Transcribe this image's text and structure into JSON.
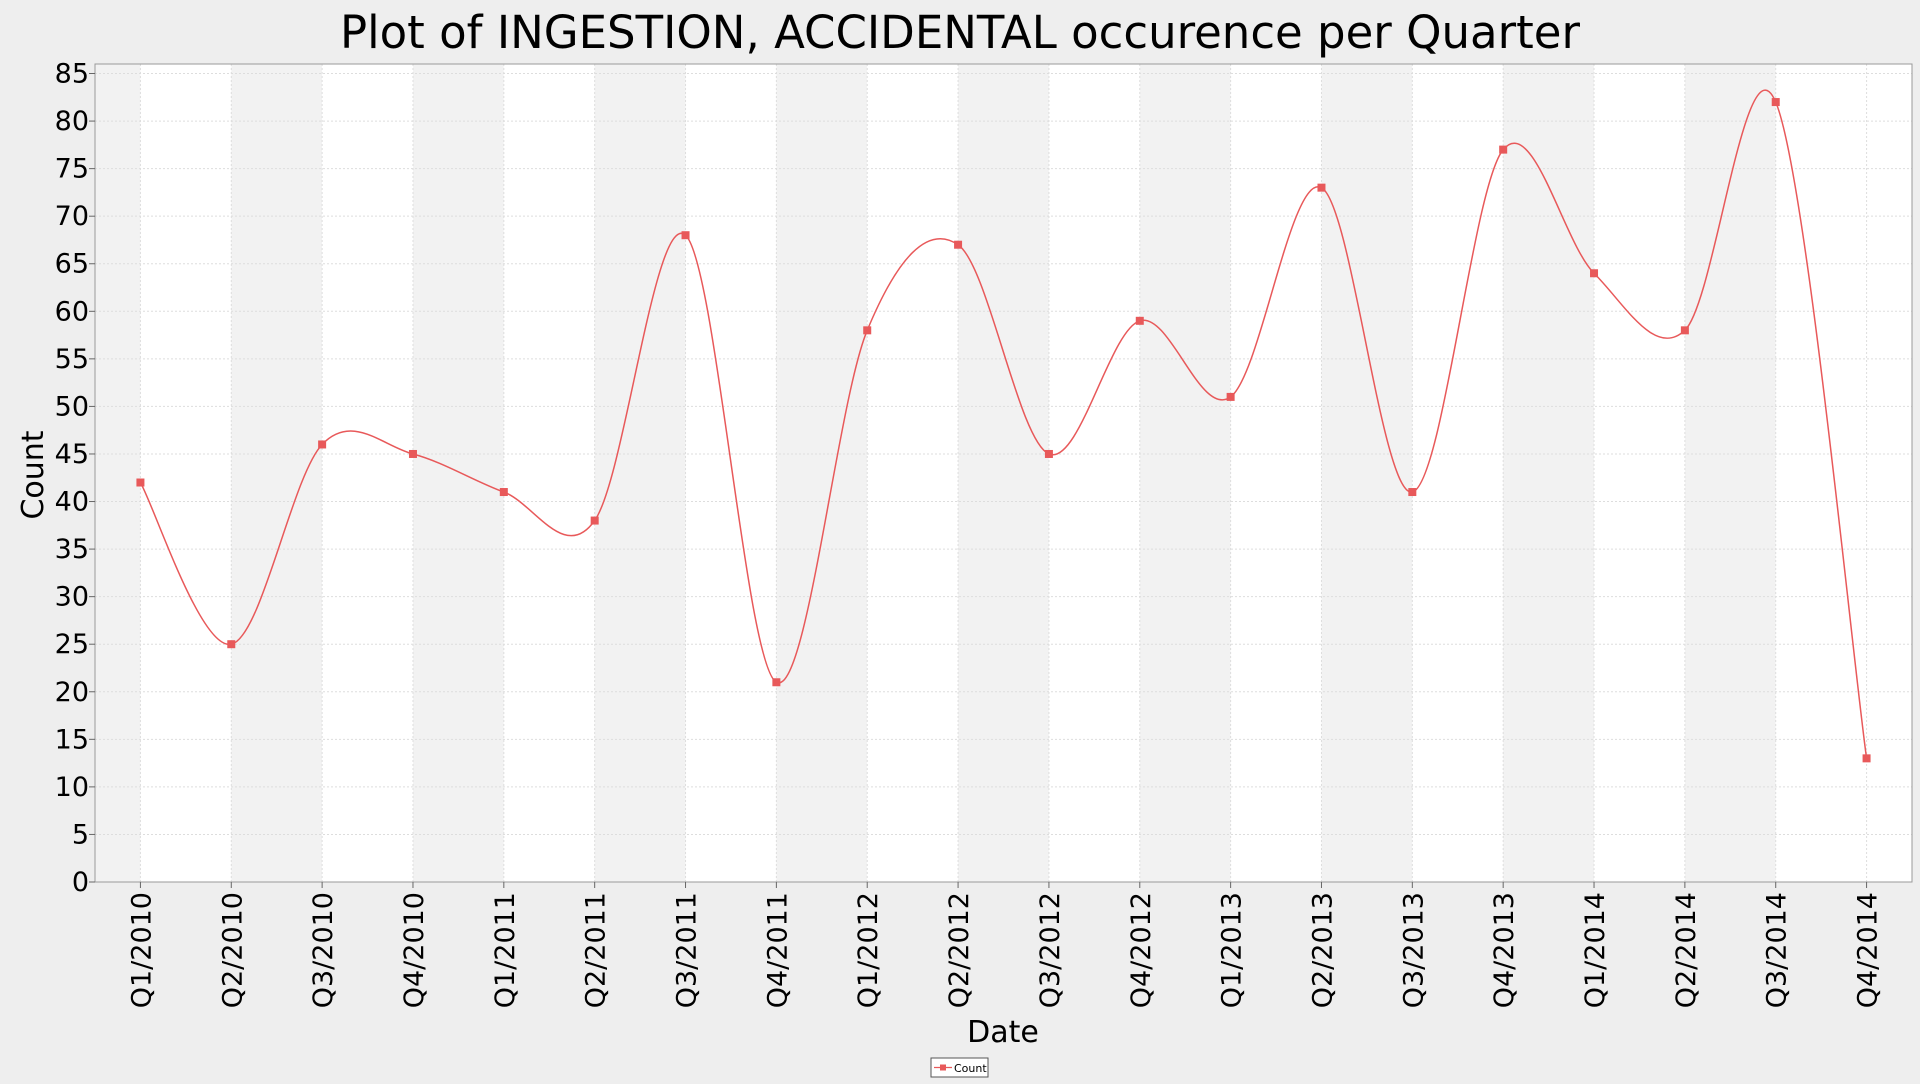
{
  "chart_data": {
    "type": "line",
    "title": "Plot of INGESTION, ACCIDENTAL occurence per Quarter",
    "xlabel": "Date",
    "ylabel": "Count",
    "categories": [
      "Q1/2010",
      "Q2/2010",
      "Q3/2010",
      "Q4/2010",
      "Q1/2011",
      "Q2/2011",
      "Q3/2011",
      "Q4/2011",
      "Q1/2012",
      "Q2/2012",
      "Q3/2012",
      "Q4/2012",
      "Q1/2013",
      "Q2/2013",
      "Q3/2013",
      "Q4/2013",
      "Q1/2014",
      "Q2/2014",
      "Q3/2014",
      "Q4/2014"
    ],
    "series": [
      {
        "name": "Count",
        "values": [
          42,
          25,
          46,
          45,
          41,
          38,
          68,
          21,
          58,
          67,
          45,
          59,
          51,
          73,
          41,
          77,
          64,
          58,
          82,
          13
        ],
        "color": "#e8595a"
      }
    ],
    "yticks": [
      0,
      5,
      10,
      15,
      20,
      25,
      30,
      35,
      40,
      45,
      50,
      55,
      60,
      65,
      70,
      75,
      80,
      85
    ],
    "ylim": [
      0,
      86
    ],
    "line_style": "smoothed",
    "grid": true,
    "legend_position": "bottom-center",
    "colors": {
      "background": "#eeeeee",
      "plot_band_alt": "#f2f2f2",
      "plot_band": "#ffffff",
      "gridline": "#dddddd",
      "series": "#e8595a"
    }
  }
}
